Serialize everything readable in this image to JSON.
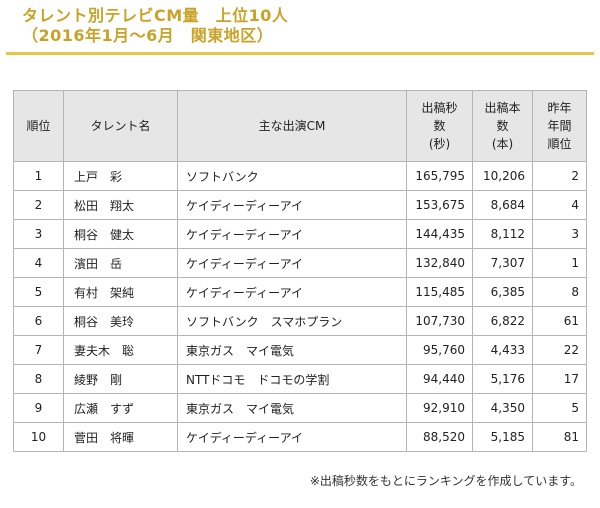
{
  "title": {
    "line1": "タレント別テレビCM量　上位10人",
    "line2": "（2016年1月～6月　関東地区）"
  },
  "table": {
    "headers": {
      "rank": "順位",
      "name": "タレント名",
      "cm": "主な出演CM",
      "seconds": [
        "出稿秒",
        "数",
        "(秒)"
      ],
      "count": [
        "出稿本",
        "数",
        "(本)"
      ],
      "prev": [
        "昨年",
        "年間",
        "順位"
      ]
    },
    "rows": [
      {
        "rank": "1",
        "name": "上戸　彩",
        "cm": "ソフトバンク",
        "seconds": "165,795",
        "count": "10,206",
        "prev": "2"
      },
      {
        "rank": "2",
        "name": "松田　翔太",
        "cm": "ケイディーディーアイ",
        "seconds": "153,675",
        "count": "8,684",
        "prev": "4"
      },
      {
        "rank": "3",
        "name": "桐谷　健太",
        "cm": "ケイディーディーアイ",
        "seconds": "144,435",
        "count": "8,112",
        "prev": "3"
      },
      {
        "rank": "4",
        "name": "濱田　岳",
        "cm": "ケイディーディーアイ",
        "seconds": "132,840",
        "count": "7,307",
        "prev": "1"
      },
      {
        "rank": "5",
        "name": "有村　架純",
        "cm": "ケイディーディーアイ",
        "seconds": "115,485",
        "count": "6,385",
        "prev": "8"
      },
      {
        "rank": "6",
        "name": "桐谷　美玲",
        "cm": "ソフトバンク　スマホプラン",
        "seconds": "107,730",
        "count": "6,822",
        "prev": "61"
      },
      {
        "rank": "7",
        "name": "妻夫木　聡",
        "cm": "東京ガス　マイ電気",
        "seconds": "95,760",
        "count": "4,433",
        "prev": "22"
      },
      {
        "rank": "8",
        "name": "綾野　剛",
        "cm": "NTTドコモ　ドコモの学割",
        "seconds": "94,440",
        "count": "5,176",
        "prev": "17"
      },
      {
        "rank": "9",
        "name": "広瀬　すず",
        "cm": "東京ガス　マイ電気",
        "seconds": "92,910",
        "count": "4,350",
        "prev": "5"
      },
      {
        "rank": "10",
        "name": "菅田　将暉",
        "cm": "ケイディーディーアイ",
        "seconds": "88,520",
        "count": "5,185",
        "prev": "81"
      }
    ]
  },
  "footnote": "※出稿秒数をもとにランキングを作成しています。"
}
